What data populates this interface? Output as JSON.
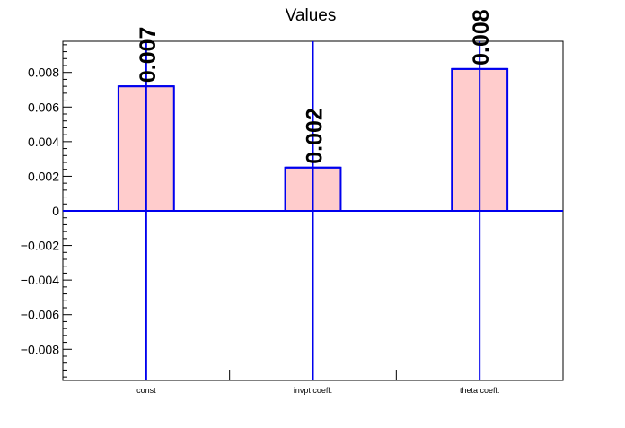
{
  "chart_data": {
    "type": "bar",
    "title": "Values",
    "categories": [
      "const",
      "invpt coeff.",
      "theta coeff."
    ],
    "values": [
      0.0072,
      0.0025,
      0.0082
    ],
    "value_labels": [
      "0.007",
      "0.002",
      "0.008"
    ],
    "ylim": [
      -0.0098,
      0.0098
    ],
    "yticks": [
      -0.008,
      -0.006,
      -0.004,
      -0.002,
      0,
      0.002,
      0.004,
      0.006,
      0.008
    ],
    "ytick_labels": [
      "−0.008",
      "−0.006",
      "−0.004",
      "−0.002",
      "0",
      "0.002",
      "0.004",
      "0.006",
      "0.008"
    ],
    "grid": false,
    "colors": {
      "bar_fill": "#ffcccc",
      "bar_edge": "#0000ee",
      "axis": "#000000"
    }
  }
}
